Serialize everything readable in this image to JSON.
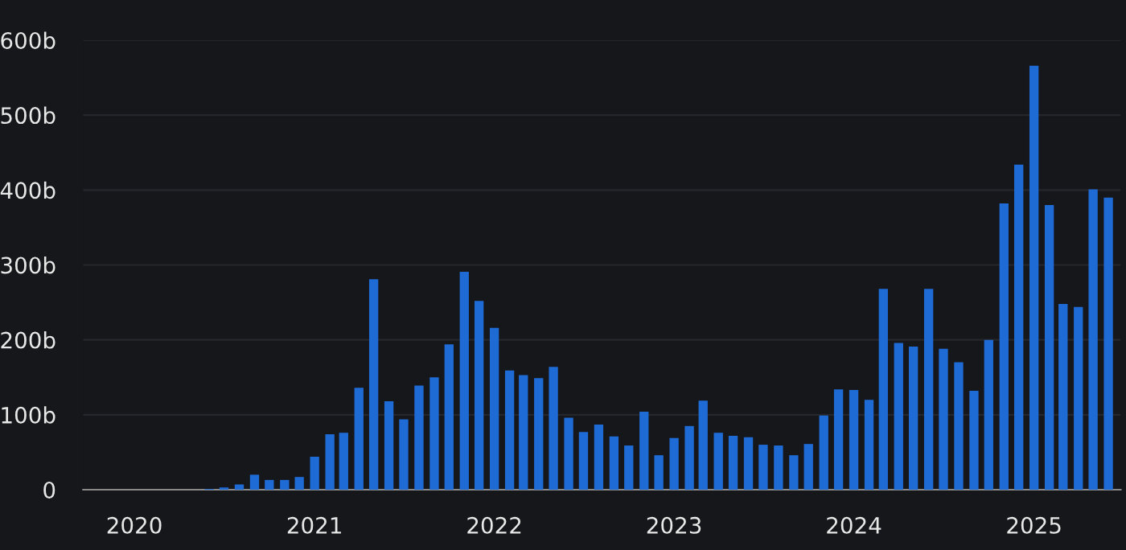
{
  "chart_data": {
    "type": "bar",
    "x": [
      "2020-01",
      "2020-02",
      "2020-03",
      "2020-04",
      "2020-05",
      "2020-06",
      "2020-07",
      "2020-08",
      "2020-09",
      "2020-10",
      "2020-11",
      "2020-12",
      "2021-01",
      "2021-02",
      "2021-03",
      "2021-04",
      "2021-05",
      "2021-06",
      "2021-07",
      "2021-08",
      "2021-09",
      "2021-10",
      "2021-11",
      "2021-12",
      "2022-01",
      "2022-02",
      "2022-03",
      "2022-04",
      "2022-05",
      "2022-06",
      "2022-07",
      "2022-08",
      "2022-09",
      "2022-10",
      "2022-11",
      "2022-12",
      "2023-01",
      "2023-02",
      "2023-03",
      "2023-04",
      "2023-05",
      "2023-06",
      "2023-07",
      "2023-08",
      "2023-09",
      "2023-10",
      "2023-11",
      "2023-12",
      "2024-01",
      "2024-02",
      "2024-03",
      "2024-04",
      "2024-05",
      "2024-06",
      "2024-07",
      "2024-08",
      "2024-09",
      "2024-10",
      "2024-11",
      "2024-12",
      "2025-01",
      "2025-02",
      "2025-03",
      "2025-04",
      "2025-05",
      "2025-06"
    ],
    "series": [
      {
        "color": "#1f6bd6",
        "values": [
          0,
          0,
          0,
          0,
          0,
          1,
          3,
          7,
          20,
          13,
          13,
          17,
          44,
          74,
          76,
          136,
          281,
          118,
          94,
          139,
          150,
          194,
          291,
          252,
          216,
          159,
          153,
          149,
          164,
          96,
          77,
          87,
          71,
          59,
          104,
          46,
          69,
          85,
          119,
          76,
          72,
          70,
          60,
          59,
          46,
          61,
          99,
          134,
          133,
          120,
          268,
          196,
          191,
          268,
          188,
          170,
          132,
          200,
          382,
          434,
          566,
          380,
          248,
          244,
          401,
          390
        ]
      }
    ],
    "xlim": [
      "2019-09-19",
      "2025-06-26"
    ],
    "xticks": [
      {
        "value": "2020",
        "label": "2020"
      },
      {
        "value": "2021",
        "label": "2021"
      },
      {
        "value": "2022",
        "label": "2022"
      },
      {
        "value": "2023",
        "label": "2023"
      },
      {
        "value": "2024",
        "label": "2024"
      },
      {
        "value": "2025",
        "label": "2025"
      }
    ],
    "ylim": [
      0,
      600
    ],
    "yticks": [
      0,
      {
        "value": 100,
        "label": "100b"
      },
      {
        "value": 200,
        "label": "200b"
      },
      {
        "value": 300,
        "label": "300b"
      },
      {
        "value": 400,
        "label": "400b"
      },
      {
        "value": 500,
        "label": "500b"
      },
      {
        "value": 600,
        "label": "600b"
      }
    ],
    "grid": "y"
  }
}
